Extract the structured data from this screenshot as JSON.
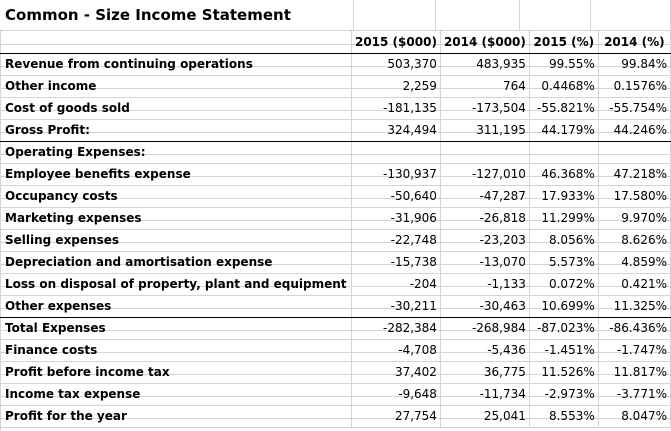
{
  "title": "Common - Size Income Statement",
  "headers": [
    "",
    "2015 ($000)",
    "2014 ($000)",
    "2015 (%)",
    "2014 (%)"
  ],
  "rows": [
    {
      "label": "Revenue from continuing operations",
      "v2015": "503,370",
      "v2014": "483,935",
      "p2015": "99.55%",
      "p2014": "99.84%"
    },
    {
      "label": "Other income",
      "v2015": "2,259",
      "v2014": "764",
      "p2015": "0.4468%",
      "p2014": "0.1576%"
    },
    {
      "label": "Cost of goods sold",
      "v2015": "-181,135",
      "v2014": "-173,504",
      "p2015": "-55.821%",
      "p2014": "-55.754%"
    },
    {
      "label": "Gross Profit:",
      "v2015": "324,494",
      "v2014": "311,195",
      "p2015": "44.179%",
      "p2014": "44.246%"
    },
    {
      "label": "Operating Expenses:",
      "v2015": "",
      "v2014": "",
      "p2015": "",
      "p2014": ""
    },
    {
      "label": "Employee benefits expense",
      "v2015": "-130,937",
      "v2014": "-127,010",
      "p2015": "46.368%",
      "p2014": "47.218%"
    },
    {
      "label": "Occupancy costs",
      "v2015": "-50,640",
      "v2014": "-47,287",
      "p2015": "17.933%",
      "p2014": "17.580%"
    },
    {
      "label": "Marketing expenses",
      "v2015": "-31,906",
      "v2014": "-26,818",
      "p2015": "11.299%",
      "p2014": "9.970%"
    },
    {
      "label": "Selling expenses",
      "v2015": "-22,748",
      "v2014": "-23,203",
      "p2015": "8.056%",
      "p2014": "8.626%"
    },
    {
      "label": "Depreciation and amortisation expense",
      "v2015": "-15,738",
      "v2014": "-13,070",
      "p2015": "5.573%",
      "p2014": "4.859%"
    },
    {
      "label": "Loss on disposal of property, plant and equipment",
      "v2015": "-204",
      "v2014": "-1,133",
      "p2015": "0.072%",
      "p2014": "0.421%"
    },
    {
      "label": "Other expenses",
      "v2015": "-30,211",
      "v2014": "-30,463",
      "p2015": "10.699%",
      "p2014": "11.325%"
    },
    {
      "label": "Total Expenses",
      "v2015": "-282,384",
      "v2014": "-268,984",
      "p2015": "-87.023%",
      "p2014": "-86.436%"
    },
    {
      "label": "Finance costs",
      "v2015": "-4,708",
      "v2014": "-5,436",
      "p2015": "-1.451%",
      "p2014": "-1.747%"
    },
    {
      "label": "Profit before income tax",
      "v2015": "37,402",
      "v2014": "36,775",
      "p2015": "11.526%",
      "p2014": "11.817%"
    },
    {
      "label": "Income tax expense",
      "v2015": "-9,648",
      "v2014": "-11,734",
      "p2015": "-2.973%",
      "p2014": "-3.771%"
    },
    {
      "label": "Profit for the year",
      "v2015": "27,754",
      "v2014": "25,041",
      "p2015": "8.553%",
      "p2014": "8.047%"
    }
  ]
}
